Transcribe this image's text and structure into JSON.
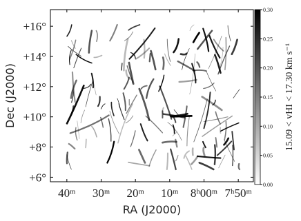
{
  "chart_data": {
    "type": "image",
    "xlabel": "RA (J2000)",
    "ylabel": "Dec (J2000)",
    "xlim": [
      524.8,
      465.6
    ],
    "xticks": [
      {
        "value": 520,
        "label": "40ᵐ"
      },
      {
        "value": 510,
        "label": "30ᵐ"
      },
      {
        "value": 500,
        "label": "20ᵐ"
      },
      {
        "value": 490,
        "label": "10ᵐ"
      },
      {
        "value": 480,
        "label": "8ʰ00ᵐ"
      },
      {
        "value": 470,
        "label": "7ʰ50ᵐ"
      }
    ],
    "ylim": [
      5.7,
      17.1
    ],
    "yticks": [
      {
        "value": 6,
        "label": "+6°"
      },
      {
        "value": 8,
        "label": "+8°"
      },
      {
        "value": 10,
        "label": "+10°"
      },
      {
        "value": 12,
        "label": "+12°"
      },
      {
        "value": 14,
        "label": "+14°"
      },
      {
        "value": 16,
        "label": "+16°"
      }
    ],
    "colorbar": {
      "label": "15.09 < vHI < 17.30 km s⁻¹",
      "lim": [
        0,
        0.3
      ],
      "colors": [
        "#ffffff",
        "#000000"
      ],
      "ticks": [
        {
          "value": 0,
          "label": "0.00"
        },
        {
          "value": 0.05,
          "label": "0.05"
        },
        {
          "value": 0.1,
          "label": "0.10"
        },
        {
          "value": 0.15,
          "label": "0.15"
        },
        {
          "value": 0.2,
          "label": "0.20"
        },
        {
          "value": 0.25,
          "label": "0.25"
        },
        {
          "value": 0.3,
          "label": "0.30"
        }
      ]
    }
  }
}
